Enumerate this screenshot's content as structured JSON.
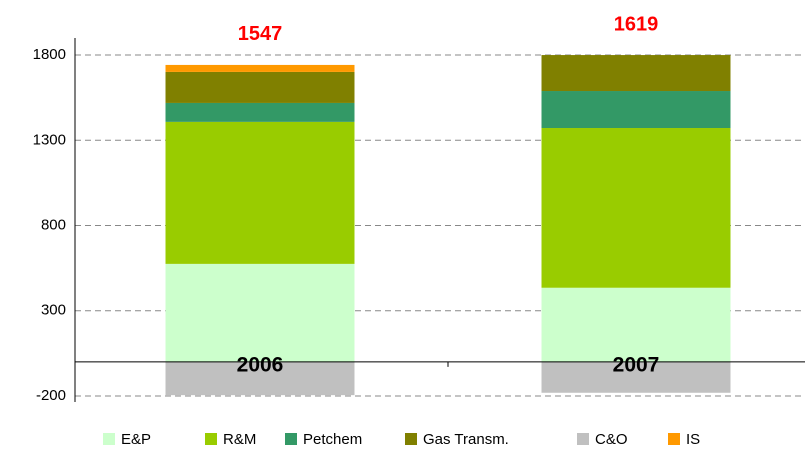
{
  "chart_data": {
    "type": "stacked_bar",
    "categories": [
      "2006",
      "2007"
    ],
    "series": [
      {
        "name": "E&P",
        "color": "#ccffcc",
        "values": [
          575,
          435
        ]
      },
      {
        "name": "R&M",
        "color": "#99cc00",
        "values": [
          833,
          937
        ]
      },
      {
        "name": "Petchem",
        "color": "#339966",
        "values": [
          111,
          217
        ]
      },
      {
        "name": "Gas Transm.",
        "color": "#808000",
        "values": [
          182,
          211
        ]
      },
      {
        "name": "C&O",
        "color": "#c0c0c0",
        "values": [
          -195,
          -181
        ]
      },
      {
        "name": "IS",
        "color": "#ff9900",
        "values": [
          41,
          0
        ]
      }
    ],
    "totals": [
      1547,
      1619
    ],
    "ylim": [
      -200,
      1900
    ],
    "yticks": [
      -200,
      300,
      800,
      1300,
      1800
    ],
    "grid": true
  }
}
